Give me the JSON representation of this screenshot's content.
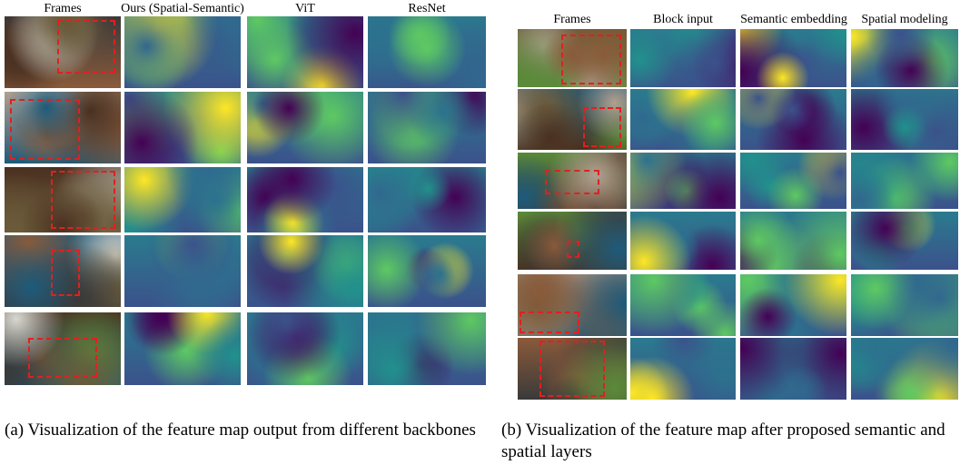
{
  "panel_a": {
    "columns": [
      "Frames",
      "Ours (Spatial-Semantic)",
      "ViT",
      "ResNet"
    ],
    "caption": "(a) Visualization of the feature map output from different backbones"
  },
  "panel_b": {
    "columns": [
      "Frames",
      "Block input",
      "Semantic embedding",
      "Spatial modeling"
    ],
    "caption": "(b) Visualization of the feature map after proposed semantic and spatial layers"
  }
}
